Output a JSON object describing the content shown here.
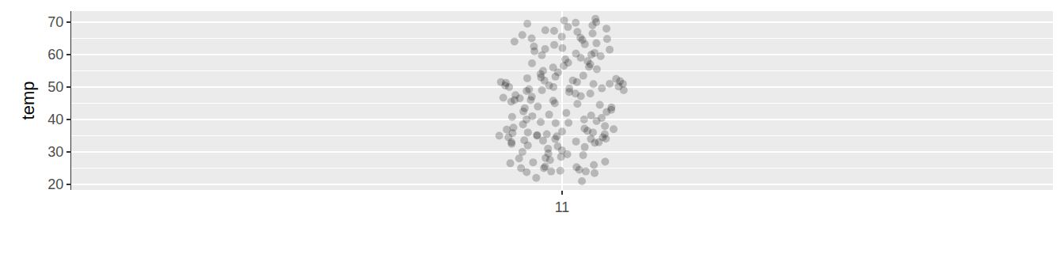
{
  "chart_data": {
    "type": "strip",
    "ylabel": "temp",
    "categories": [
      "11"
    ],
    "values": [
      [
        21,
        22,
        23.5,
        24,
        24,
        24.5,
        25,
        25,
        25.5,
        26,
        26.5,
        27,
        27.5,
        28,
        28.5,
        29,
        29.5,
        30,
        24.2,
        23.8,
        25.3,
        26.8,
        28.1,
        29.3,
        30.5,
        31,
        31.5,
        32,
        32.5,
        33,
        33,
        33.5,
        34,
        34,
        34.5,
        34.5,
        35,
        35,
        35.5,
        35.5,
        36,
        36,
        36.5,
        37,
        37.5,
        38,
        33.2,
        34.8,
        35.2,
        36.3,
        31.7,
        32.8,
        37.2,
        34.1,
        35.8,
        33.6,
        36.9,
        38.5,
        39,
        39.5,
        40,
        40,
        40.5,
        41,
        41.5,
        42,
        42.5,
        43,
        43.5,
        44,
        44.5,
        45,
        39.2,
        40.8,
        42.3,
        43.7,
        41.2,
        44.8,
        38.9,
        45.5,
        46,
        46,
        46.5,
        47,
        47.5,
        48,
        48,
        48.5,
        49,
        49,
        49.5,
        50,
        50,
        50.5,
        50.5,
        51,
        51,
        51.5,
        51.5,
        52,
        52,
        52.5,
        53,
        53.5,
        54,
        54.5,
        55,
        47.2,
        48.8,
        49.6,
        50.9,
        51.8,
        52.7,
        46.7,
        49.3,
        50.2,
        51.3,
        53.2,
        45.8,
        55.5,
        56,
        56.5,
        57,
        57.5,
        58,
        58.5,
        59,
        59.5,
        60,
        60.5,
        61,
        61.5,
        62,
        62.5,
        63,
        63.5,
        64,
        64.5,
        65,
        57.3,
        59.8,
        61.7,
        63.2,
        64.8,
        56.2,
        60.3,
        65.5,
        66,
        66.5,
        67,
        67.5,
        68,
        68.5,
        69,
        69.5,
        70,
        70.5,
        71,
        65.2,
        67.3,
        69.8
      ]
    ],
    "ylim": [
      18.3,
      73.4
    ],
    "yticks": [
      20,
      30,
      40,
      50,
      60,
      70
    ],
    "grid": true,
    "color": "#000000",
    "marker": "circle"
  }
}
